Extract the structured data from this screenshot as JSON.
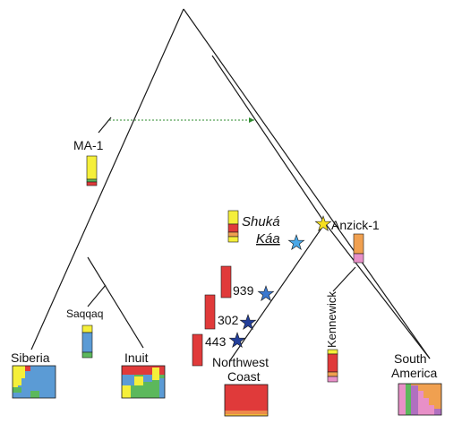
{
  "labels": {
    "ma1": "MA-1",
    "shuka_line1": "Shuká",
    "shuka_line2": "Káa",
    "anzick": "Anzick-1",
    "saqqaq": "Saqqaq",
    "n939": "939",
    "n302": "302",
    "n443": "443",
    "kennewick": "Kennewick",
    "siberia": "Siberia",
    "inuit": "Inuit",
    "northwest_line1": "Northwest",
    "northwest_line2": "Coast",
    "south_line1": "South",
    "south_line2": "America"
  },
  "colors": {
    "line": "#1a1a1a",
    "yellow": "#f5ef3a",
    "red": "#e03a3a",
    "orange": "#f0a050",
    "pink": "#e890c8",
    "blue": "#5b9bd5",
    "green": "#5cb85c",
    "purple": "#b070c0",
    "gene_flow": "#2e8b2e",
    "star_yellow": "#f7e020",
    "star_light_blue": "#4aa8e8",
    "star_mid_blue": "#3a78d0",
    "star_dark_blue": "#233f9a"
  },
  "icons": {
    "gene_flow": "dotted-arrow-icon",
    "samples": "star-icon"
  }
}
